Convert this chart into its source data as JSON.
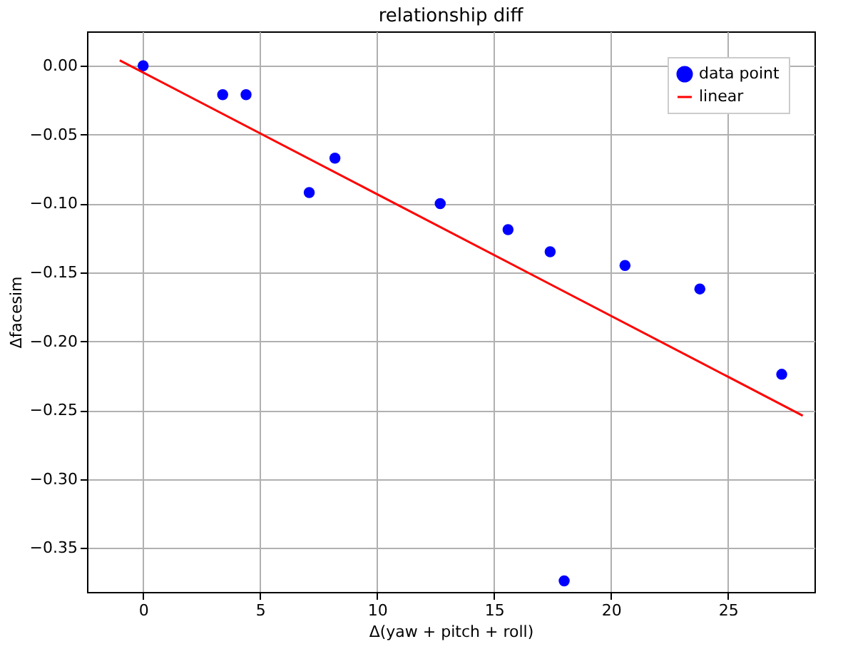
{
  "chart_data": {
    "type": "scatter",
    "title": "relationship diff",
    "xlabel": "Δ(yaw + pitch + roll)",
    "ylabel": "Δfacesim",
    "xlim": [
      -2.4,
      28.7
    ],
    "ylim": [
      -0.382,
      0.025
    ],
    "xticks": [
      0,
      5,
      10,
      15,
      20,
      25
    ],
    "yticks": [
      {
        "value": 0,
        "label": "0.00"
      },
      {
        "value": -0.05,
        "label": "−0.05"
      },
      {
        "value": -0.1,
        "label": "−0.10"
      },
      {
        "value": -0.15,
        "label": "−0.15"
      },
      {
        "value": -0.2,
        "label": "−0.20"
      },
      {
        "value": -0.25,
        "label": "−0.25"
      },
      {
        "value": -0.3,
        "label": "−0.30"
      },
      {
        "value": -0.35,
        "label": "−0.35"
      }
    ],
    "grid": true,
    "legend": "top right",
    "series": [
      {
        "name": "data point",
        "marker": "circle",
        "color": "#0000ff",
        "x": [
          0,
          3.4,
          4.4,
          7.1,
          8.2,
          12.7,
          15.6,
          17.4,
          18.0,
          20.6,
          23.8,
          27.3
        ],
        "values": [
          0,
          -0.021,
          -0.021,
          -0.092,
          -0.067,
          -0.1,
          -0.119,
          -0.135,
          -0.374,
          -0.145,
          -0.162,
          -0.224
        ]
      },
      {
        "name": "linear",
        "type": "line",
        "color": "#ff0000",
        "line_style": "solid",
        "x": [
          -1,
          28.2
        ],
        "values": [
          0.004,
          -0.254
        ]
      }
    ]
  }
}
